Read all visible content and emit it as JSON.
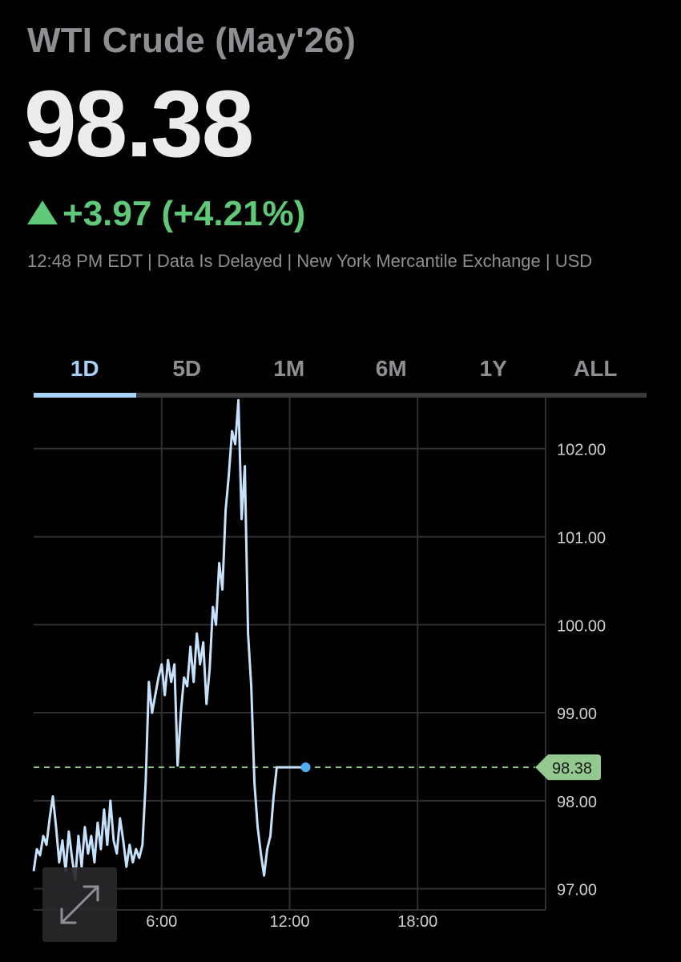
{
  "header": {
    "title": "WTI Crude (May'26)",
    "price": "98.38",
    "change": "+3.97 (+4.21%)",
    "meta": "12:48 PM EDT | Data Is Delayed | New York Mercantile Exchange | USD"
  },
  "colors": {
    "background": "#000000",
    "up": "#5fc879",
    "line": "#c6e2fb",
    "accent": "#a9d1f7",
    "grid": "#2e3035",
    "last_price_tag": "#93c98e"
  },
  "tabs": [
    {
      "label": "1D",
      "active": true
    },
    {
      "label": "5D",
      "active": false
    },
    {
      "label": "1M",
      "active": false
    },
    {
      "label": "6M",
      "active": false
    },
    {
      "label": "1Y",
      "active": false
    },
    {
      "label": "ALL",
      "active": false
    }
  ],
  "controls": {
    "expand_icon": "expand-diagonal-icon"
  },
  "chart_data": {
    "type": "line",
    "xlabel": "",
    "ylabel": "",
    "x_range_hours": [
      0,
      24
    ],
    "ylim": [
      96.76,
      102.58
    ],
    "y_ticks": [
      {
        "value": 97,
        "label": "97.00"
      },
      {
        "value": 98,
        "label": "98.00"
      },
      {
        "value": 99,
        "label": "99.00"
      },
      {
        "value": 100,
        "label": "100.00"
      },
      {
        "value": 101,
        "label": "101.00"
      },
      {
        "value": 102,
        "label": "102.00"
      }
    ],
    "x_ticks": [
      {
        "value": 6,
        "label": "6:00"
      },
      {
        "value": 12,
        "label": "12:00"
      },
      {
        "value": 18,
        "label": "18:00"
      }
    ],
    "grid": true,
    "last_price": 98.38,
    "last_price_label": "98.38",
    "series": [
      {
        "x": [
          0.0,
          0.15,
          0.3,
          0.45,
          0.6,
          0.75,
          0.9,
          1.05,
          1.2,
          1.35,
          1.5,
          1.65,
          1.8,
          1.95,
          2.1,
          2.25,
          2.4,
          2.55,
          2.7,
          2.85,
          3.0,
          3.15,
          3.3,
          3.45,
          3.6,
          3.75,
          3.9,
          4.05,
          4.2,
          4.35,
          4.5,
          4.65,
          4.8,
          4.95,
          5.1,
          5.25,
          5.4,
          5.55,
          5.7,
          5.85,
          6.0,
          6.15,
          6.3,
          6.45,
          6.6,
          6.75,
          6.9,
          7.05,
          7.2,
          7.35,
          7.5,
          7.65,
          7.8,
          7.95,
          8.1,
          8.25,
          8.4,
          8.55,
          8.7,
          8.85,
          9.0,
          9.15,
          9.3,
          9.45,
          9.6,
          9.75,
          9.9,
          10.05,
          10.2,
          10.35,
          10.5,
          10.65,
          10.8,
          10.95,
          11.1,
          11.25,
          11.4,
          11.55,
          11.7,
          11.85,
          12.0,
          12.15,
          12.3,
          12.45,
          12.6,
          12.75,
          12.9
        ],
        "values": [
          97.2,
          97.45,
          97.38,
          97.6,
          97.5,
          97.8,
          98.05,
          97.7,
          97.3,
          97.55,
          97.2,
          97.65,
          97.35,
          97.1,
          97.6,
          97.25,
          97.7,
          97.4,
          97.6,
          97.3,
          97.75,
          97.45,
          97.9,
          97.5,
          98.0,
          97.55,
          97.4,
          97.8,
          97.55,
          97.25,
          97.5,
          97.3,
          97.45,
          97.35,
          97.5,
          98.2,
          99.35,
          99.0,
          99.2,
          99.4,
          99.55,
          99.2,
          99.6,
          99.35,
          99.55,
          98.4,
          99.0,
          99.4,
          99.3,
          99.75,
          99.35,
          99.9,
          99.55,
          99.8,
          99.1,
          99.5,
          100.2,
          100.0,
          100.7,
          100.4,
          101.3,
          101.7,
          102.2,
          102.05,
          102.55,
          101.2,
          101.8,
          99.9,
          99.3,
          98.2,
          97.7,
          97.4,
          97.15,
          97.45,
          97.6,
          98.05,
          98.38,
          98.38,
          98.38,
          98.38,
          98.38,
          98.38,
          98.38,
          98.38,
          98.38,
          98.38,
          98.38
        ]
      }
    ]
  }
}
